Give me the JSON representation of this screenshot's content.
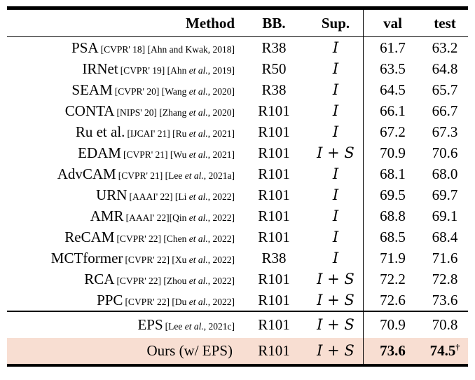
{
  "table": {
    "headers": {
      "method": "Method",
      "bb": "BB.",
      "sup": "Sup.",
      "val": "val",
      "test": "test"
    },
    "highlight_color": "#f8ded2",
    "rows": [
      {
        "name": "PSA",
        "cite": [
          {
            "t": "[CVPR' 18] [Ahn and Kwak, 2018]",
            "i": false
          }
        ],
        "bb": "R38",
        "sup": "I",
        "val": "61.7",
        "test": "63.2"
      },
      {
        "name": "IRNet",
        "cite": [
          {
            "t": "[CVPR' 19] [Ahn ",
            "i": false
          },
          {
            "t": "et al.",
            "i": true
          },
          {
            "t": ", 2019]",
            "i": false
          }
        ],
        "bb": "R50",
        "sup": "I",
        "val": "63.5",
        "test": "64.8"
      },
      {
        "name": "SEAM",
        "cite": [
          {
            "t": "[CVPR' 20] [Wang ",
            "i": false
          },
          {
            "t": "et al.",
            "i": true
          },
          {
            "t": ", 2020]",
            "i": false
          }
        ],
        "bb": "R38",
        "sup": "I",
        "val": "64.5",
        "test": "65.7"
      },
      {
        "name": "CONTA",
        "cite": [
          {
            "t": "[NIPS' 20] [Zhang ",
            "i": false
          },
          {
            "t": "et al.",
            "i": true
          },
          {
            "t": ", 2020]",
            "i": false
          }
        ],
        "bb": "R101",
        "sup": "I",
        "val": "66.1",
        "test": "66.7"
      },
      {
        "name": "Ru et al.",
        "cite": [
          {
            "t": "[IJCAI' 21] [Ru ",
            "i": false
          },
          {
            "t": "et al.",
            "i": true
          },
          {
            "t": ", 2021]",
            "i": false
          }
        ],
        "bb": "R101",
        "sup": "I",
        "val": "67.2",
        "test": "67.3"
      },
      {
        "name": "EDAM",
        "cite": [
          {
            "t": "[CVPR' 21] [Wu ",
            "i": false
          },
          {
            "t": "et al.",
            "i": true
          },
          {
            "t": ", 2021]",
            "i": false
          }
        ],
        "bb": "R101",
        "sup": "I + S",
        "val": "70.9",
        "test": "70.6"
      },
      {
        "name": "AdvCAM",
        "cite": [
          {
            "t": "[CVPR' 21] [Lee ",
            "i": false
          },
          {
            "t": "et al.",
            "i": true
          },
          {
            "t": ", 2021a]",
            "i": false
          }
        ],
        "bb": "R101",
        "sup": "I",
        "val": "68.1",
        "test": "68.0"
      },
      {
        "name": "URN",
        "cite": [
          {
            "t": "[AAAI' 22] [Li ",
            "i": false
          },
          {
            "t": "et al.",
            "i": true
          },
          {
            "t": ", 2022]",
            "i": false
          }
        ],
        "bb": "R101",
        "sup": "I",
        "val": "69.5",
        "test": "69.7"
      },
      {
        "name": "AMR",
        "cite": [
          {
            "t": "[AAAI' 22][Qin ",
            "i": false
          },
          {
            "t": "et al.",
            "i": true
          },
          {
            "t": ", 2022]",
            "i": false
          }
        ],
        "bb": "R101",
        "sup": "I",
        "val": "68.8",
        "test": "69.1"
      },
      {
        "name": "ReCAM",
        "cite": [
          {
            "t": "[CVPR' 22] [Chen ",
            "i": false
          },
          {
            "t": "et al.",
            "i": true
          },
          {
            "t": ", 2022]",
            "i": false
          }
        ],
        "bb": "R101",
        "sup": "I",
        "val": "68.5",
        "test": "68.4"
      },
      {
        "name": "MCTformer",
        "cite": [
          {
            "t": "[CVPR' 22] [Xu ",
            "i": false
          },
          {
            "t": "et al.",
            "i": true
          },
          {
            "t": ", 2022]",
            "i": false
          }
        ],
        "bb": "R38",
        "sup": "I",
        "val": "71.9",
        "test": "71.6"
      },
      {
        "name": "RCA",
        "cite": [
          {
            "t": "[CVPR' 22] [Zhou ",
            "i": false
          },
          {
            "t": "et al.",
            "i": true
          },
          {
            "t": ", 2022]",
            "i": false
          }
        ],
        "bb": "R101",
        "sup": "I + S",
        "val": "72.2",
        "test": "72.8"
      },
      {
        "name": "PPC",
        "cite": [
          {
            "t": "[CVPR' 22] [Du ",
            "i": false
          },
          {
            "t": "et al.",
            "i": true
          },
          {
            "t": ", 2022]",
            "i": false
          }
        ],
        "bb": "R101",
        "sup": "I + S",
        "val": "72.6",
        "test": "73.6"
      }
    ],
    "footer_rows": [
      {
        "name": "EPS",
        "cite": [
          {
            "t": "[Lee ",
            "i": false
          },
          {
            "t": "et al.",
            "i": true
          },
          {
            "t": ", 2021c]",
            "i": false
          }
        ],
        "bb": "R101",
        "sup": "I + S",
        "val": "70.9",
        "test": "70.8"
      },
      {
        "name": "Ours (w/ EPS)",
        "cite": [],
        "bb": "R101",
        "sup": "I + S",
        "val": "73.6",
        "test": "74.5",
        "test_sup": "†",
        "bold_vals": true,
        "highlight": true
      }
    ]
  }
}
